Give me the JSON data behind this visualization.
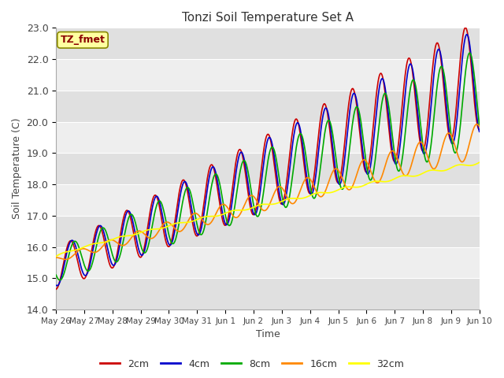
{
  "title": "Tonzi Soil Temperature Set A",
  "xlabel": "Time",
  "ylabel": "Soil Temperature (C)",
  "ylim": [
    14.0,
    23.0
  ],
  "yticks": [
    14.0,
    15.0,
    16.0,
    17.0,
    18.0,
    19.0,
    20.0,
    21.0,
    22.0,
    23.0
  ],
  "bg_color": "#ffffff",
  "plot_bg_color": "#e8e8e8",
  "grid_color": "#ffffff",
  "legend_label": "TZ_fmet",
  "series_colors": {
    "2cm": "#cc0000",
    "4cm": "#0000cc",
    "8cm": "#00aa00",
    "16cm": "#ff8800",
    "32cm": "#ffff00"
  },
  "series_linewidth": 1.2,
  "x_tick_labels": [
    "May 26",
    "May 27",
    "May 28",
    "May 29",
    "May 30",
    "May 31",
    "Jun 1",
    "Jun 2",
    "Jun 3",
    "Jun 4",
    "Jun 5",
    "Jun 6",
    "Jun 7",
    "Jun 8",
    "Jun 9",
    "Jun 10"
  ]
}
